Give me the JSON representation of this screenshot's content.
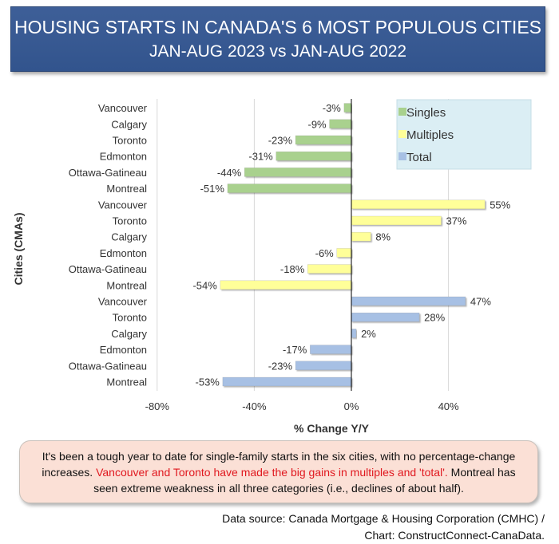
{
  "header": {
    "title": "HOUSING STARTS IN CANADA'S 6 MOST POPULOUS CITIES",
    "subtitle": "JAN-AUG 2023 vs JAN-AUG 2022"
  },
  "chart_data": {
    "type": "bar",
    "orientation": "horizontal",
    "ylabel": "Cities (CMAs)",
    "xlabel": "% Change Y/Y",
    "xlim": [
      -80,
      60
    ],
    "xticks": [
      "-80%",
      "-40%",
      "0%",
      "40%"
    ],
    "tick_values": [
      -80,
      -40,
      0,
      40
    ],
    "grid": true,
    "legend_position": "top-right",
    "series": [
      {
        "name": "Singles",
        "color": "#a9d18e",
        "categories": [
          "Vancouver",
          "Calgary",
          "Toronto",
          "Edmonton",
          "Ottawa-Gatineau",
          "Montreal"
        ],
        "values": [
          -3,
          -9,
          -23,
          -31,
          -44,
          -51
        ],
        "labels": [
          "-3%",
          "-9%",
          "-23%",
          "-31%",
          "-44%",
          "-51%"
        ]
      },
      {
        "name": "Multiples",
        "color": "#ffff99",
        "categories": [
          "Vancouver",
          "Toronto",
          "Calgary",
          "Edmonton",
          "Ottawa-Gatineau",
          "Montreal"
        ],
        "values": [
          55,
          37,
          8,
          -6,
          -18,
          -54
        ],
        "labels": [
          "55%",
          "37%",
          "8%",
          "-6%",
          "-18%",
          "-54%"
        ]
      },
      {
        "name": "Total",
        "color": "#a7c0e4",
        "categories": [
          "Vancouver",
          "Toronto",
          "Calgary",
          "Edmonton",
          "Ottawa-Gatineau",
          "Montreal"
        ],
        "values": [
          47,
          28,
          2,
          -17,
          -23,
          -53
        ],
        "labels": [
          "47%",
          "28%",
          "2%",
          "-17%",
          "-23%",
          "-53%"
        ]
      }
    ]
  },
  "note": {
    "part1": "It's been a tough year to date for single-family starts in the six cities, with no percentage-change increases. ",
    "highlight": "Vancouver and Toronto have made the big gains in multiples and 'total'.",
    "part2": " Montreal has seen extreme weakness in all three categories (i.e., declines of about half)."
  },
  "source": {
    "line1": "Data source: Canada Mortgage & Housing Corporation (CMHC) /",
    "line2": "Chart: ConstructConnect-CanaData."
  }
}
